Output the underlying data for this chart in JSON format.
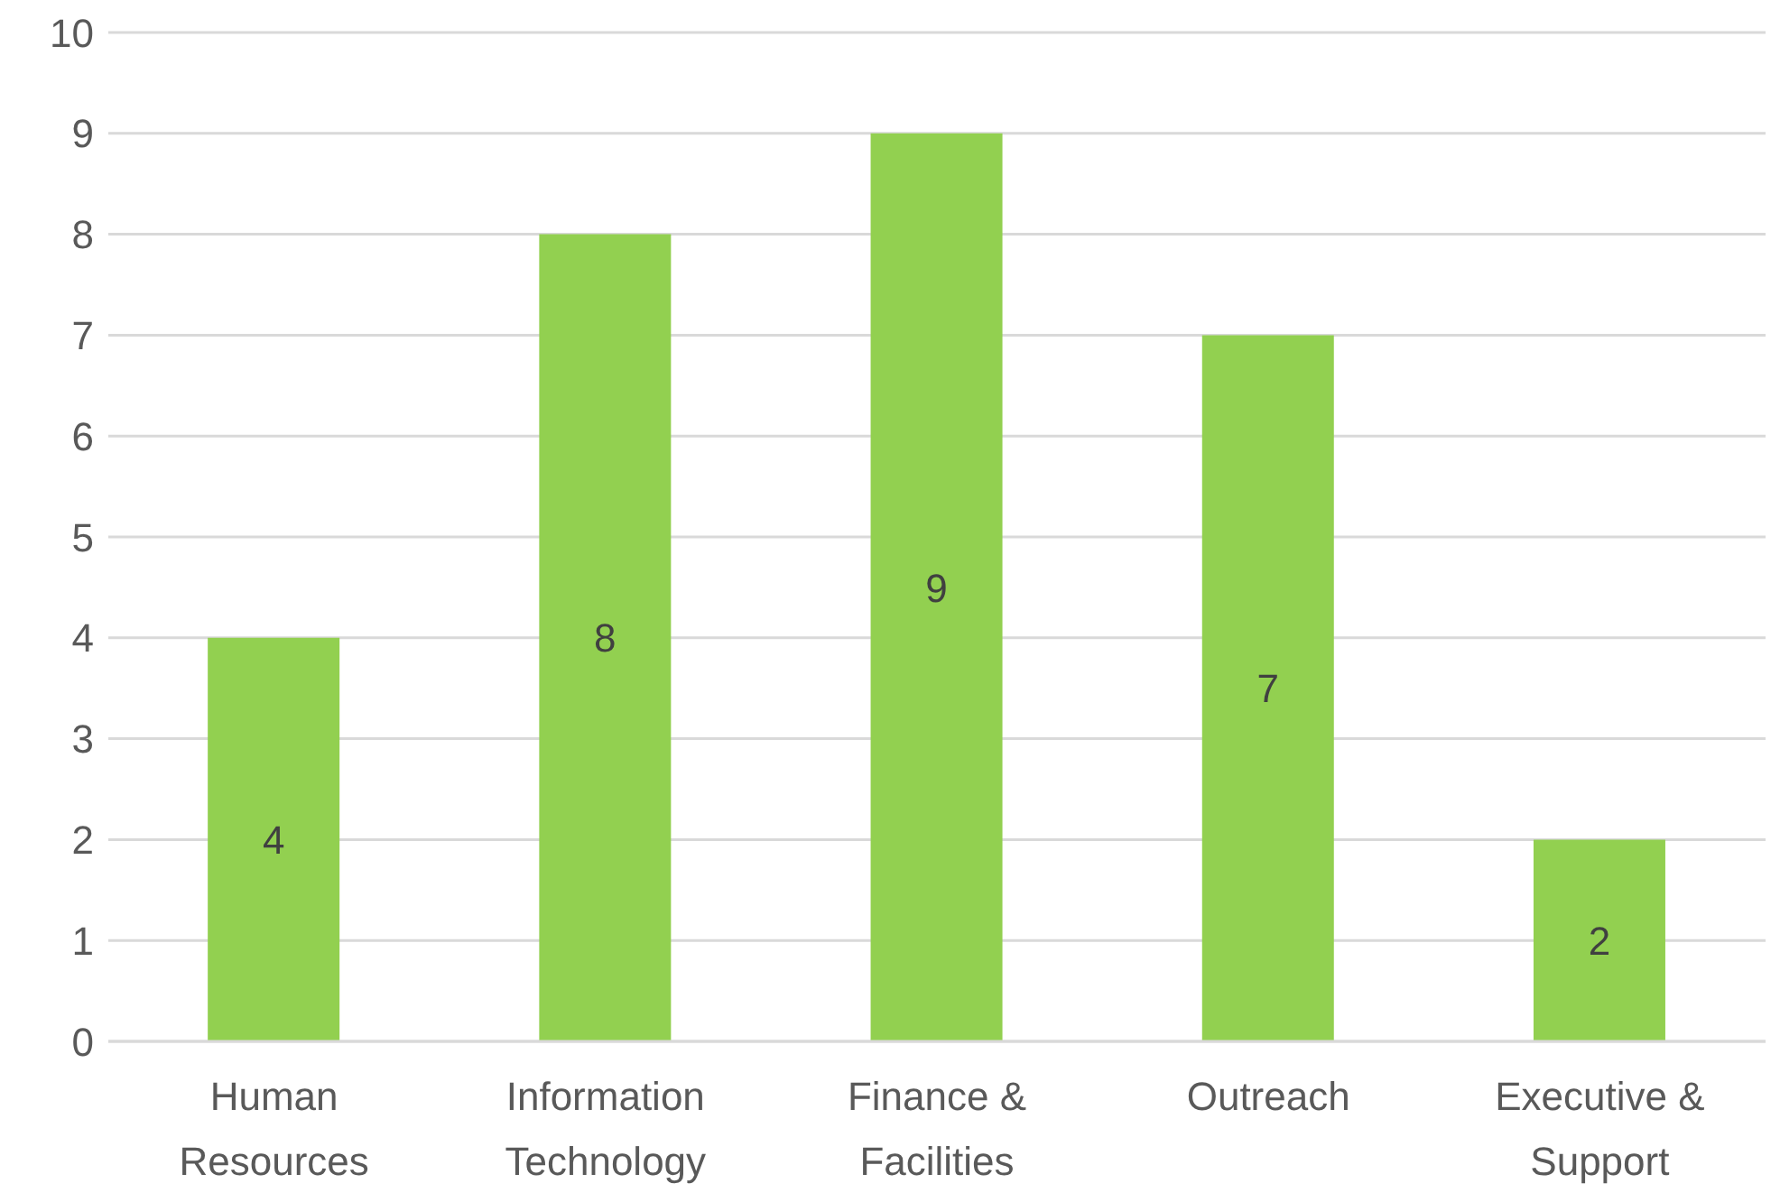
{
  "chart_data": {
    "type": "bar",
    "categories": [
      "Human Resources",
      "Information Technology",
      "Finance & Facilities",
      "Outreach",
      "Executive & Support"
    ],
    "values": [
      4,
      8,
      9,
      7,
      2
    ],
    "color": "#92d050",
    "ylim": [
      0,
      10
    ],
    "yticks": [
      0,
      1,
      2,
      3,
      4,
      5,
      6,
      7,
      8,
      9,
      10
    ],
    "grid": "y",
    "data_labels": true
  }
}
